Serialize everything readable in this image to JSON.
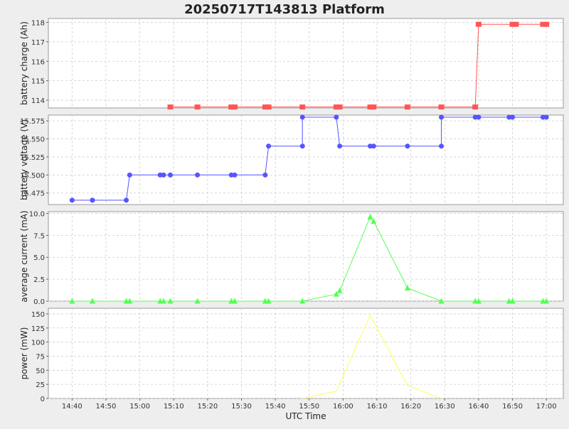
{
  "title": "20250717T143813 Platform",
  "x_axis": {
    "label": "UTC Time",
    "ticks": [
      "14:40",
      "14:50",
      "15:00",
      "15:10",
      "15:20",
      "15:30",
      "15:40",
      "15:50",
      "16:00",
      "16:10",
      "16:20",
      "16:30",
      "16:40",
      "16:50",
      "17:00"
    ]
  },
  "colors": {
    "charge": "#ff5555",
    "voltage": "#5555ff",
    "current": "#55ff55",
    "power": "#ffff55",
    "grid": "#cccccc",
    "plot_bg": "#ffffff",
    "page_bg": "#eeeeee"
  },
  "chart_data": [
    {
      "type": "line",
      "marker": "square",
      "ylabel": "battery charge (Ah)",
      "ylim": [
        113.6,
        118.2
      ],
      "yticks": [
        "114",
        "115",
        "116",
        "117",
        "118"
      ],
      "series": [
        {
          "x": [
            "15:09",
            "15:17",
            "15:27",
            "15:28",
            "15:37",
            "15:38",
            "15:48",
            "15:58",
            "15:59",
            "16:08",
            "16:09",
            "16:19",
            "16:29",
            "16:39",
            "16:40",
            "16:50",
            "16:51",
            "16:59",
            "17:00"
          ],
          "y": [
            113.65,
            113.65,
            113.65,
            113.65,
            113.65,
            113.65,
            113.65,
            113.65,
            113.65,
            113.65,
            113.65,
            113.65,
            113.65,
            113.65,
            117.9,
            117.9,
            117.9,
            117.9,
            117.9
          ]
        }
      ]
    },
    {
      "type": "line",
      "marker": "circle",
      "ylabel": "battery voltage (V)",
      "ylim": [
        15.459,
        15.583
      ],
      "yticks": [
        "15.475",
        "15.500",
        "15.525",
        "15.550",
        "15.575"
      ],
      "series": [
        {
          "x": [
            "14:40",
            "14:46",
            "14:46",
            "14:56",
            "14:57",
            "15:06",
            "15:07",
            "15:09",
            "15:17",
            "15:27",
            "15:28",
            "15:37",
            "15:38",
            "15:48",
            "15:48",
            "15:58",
            "15:59",
            "16:08",
            "16:09",
            "16:19",
            "16:29",
            "16:29",
            "16:39",
            "16:40",
            "16:49",
            "16:50",
            "16:59",
            "17:00"
          ],
          "y": [
            15.465,
            15.465,
            15.465,
            15.465,
            15.5,
            15.5,
            15.5,
            15.5,
            15.5,
            15.5,
            15.5,
            15.5,
            15.54,
            15.54,
            15.58,
            15.58,
            15.54,
            15.54,
            15.54,
            15.54,
            15.54,
            15.58,
            15.58,
            15.58,
            15.58,
            15.58,
            15.58,
            15.58
          ]
        }
      ]
    },
    {
      "type": "line",
      "marker": "triangle",
      "ylabel": "average current (mA)",
      "ylim": [
        0,
        10.2
      ],
      "yticks": [
        "0.0",
        "2.5",
        "5.0",
        "7.5",
        "10.0"
      ],
      "series": [
        {
          "x": [
            "14:40",
            "14:46",
            "14:46",
            "14:56",
            "14:57",
            "15:06",
            "15:07",
            "15:09",
            "15:17",
            "15:27",
            "15:28",
            "15:37",
            "15:38",
            "15:48",
            "15:58",
            "15:59",
            "16:08",
            "16:09",
            "16:19",
            "16:29",
            "16:39",
            "16:40",
            "16:49",
            "16:50",
            "16:59",
            "17:00"
          ],
          "y": [
            0,
            0,
            0,
            0,
            0,
            0,
            0,
            0,
            0,
            0,
            0,
            0,
            0,
            0,
            0.8,
            1.2,
            9.6,
            9.1,
            1.5,
            0,
            0,
            0,
            0,
            0,
            0,
            0
          ]
        }
      ]
    },
    {
      "type": "line",
      "marker": "none",
      "ylabel": "power (mW)",
      "ylim": [
        0,
        160
      ],
      "yticks": [
        "0",
        "25",
        "50",
        "75",
        "100",
        "125",
        "150"
      ],
      "series": [
        {
          "x": [
            "15:48",
            "15:58",
            "16:08",
            "16:19",
            "16:29"
          ],
          "y": [
            0,
            13,
            148,
            23,
            0
          ]
        }
      ]
    }
  ]
}
